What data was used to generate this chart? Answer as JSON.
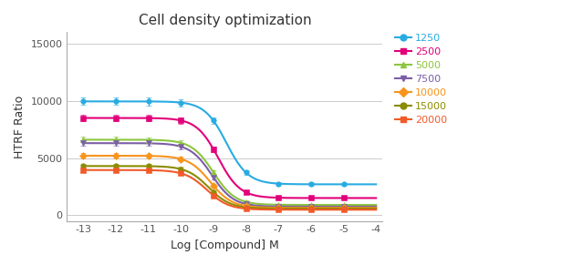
{
  "title": "Cell density optimization",
  "xlabel": "Log [Compound] M",
  "ylabel": "HTRF Ratio",
  "x_ticks": [
    -13,
    -12,
    -11,
    -10,
    -9,
    -8,
    -7,
    -6,
    -5,
    -4
  ],
  "xlim": [
    -13.5,
    -3.8
  ],
  "ylim": [
    -500,
    16000
  ],
  "y_ticks": [
    0,
    5000,
    10000,
    15000
  ],
  "bg_color": "#ffffff",
  "grid_color": "#cccccc",
  "series": [
    {
      "label": "1250",
      "color": "#29abe2",
      "marker": "o",
      "top": 9950,
      "bottom": 2700,
      "ec50": -8.6,
      "hill": 1.3
    },
    {
      "label": "2500",
      "color": "#e2007a",
      "marker": "s",
      "top": 8500,
      "bottom": 1500,
      "ec50": -8.85,
      "hill": 1.3
    },
    {
      "label": "5000",
      "color": "#8dc63f",
      "marker": "^",
      "top": 6600,
      "bottom": 900,
      "ec50": -9.0,
      "hill": 1.3
    },
    {
      "label": "7500",
      "color": "#7b5ea7",
      "marker": "v",
      "top": 6300,
      "bottom": 750,
      "ec50": -9.05,
      "hill": 1.3
    },
    {
      "label": "10000",
      "color": "#f7941d",
      "marker": "D",
      "top": 5200,
      "bottom": 650,
      "ec50": -9.1,
      "hill": 1.3
    },
    {
      "label": "15000",
      "color": "#8b8c00",
      "marker": "o",
      "top": 4300,
      "bottom": 580,
      "ec50": -9.15,
      "hill": 1.3
    },
    {
      "label": "20000",
      "color": "#f15a29",
      "marker": "s",
      "top": 3950,
      "bottom": 480,
      "ec50": -9.2,
      "hill": 1.3
    }
  ],
  "x_points": [
    -13,
    -12,
    -11,
    -10,
    -9,
    -8,
    -7,
    -6,
    -5
  ]
}
